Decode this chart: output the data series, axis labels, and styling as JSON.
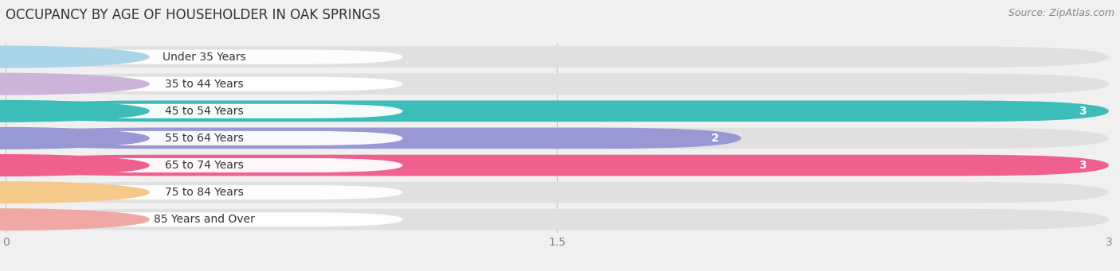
{
  "title": "OCCUPANCY BY AGE OF HOUSEHOLDER IN OAK SPRINGS",
  "source": "Source: ZipAtlas.com",
  "categories": [
    "Under 35 Years",
    "35 to 44 Years",
    "45 to 54 Years",
    "55 to 64 Years",
    "65 to 74 Years",
    "75 to 84 Years",
    "85 Years and Over"
  ],
  "values": [
    0,
    0,
    3,
    2,
    3,
    0,
    0
  ],
  "bar_colors": [
    "#aad4e8",
    "#ccb3d9",
    "#3dbdba",
    "#9898d4",
    "#f0608e",
    "#f5c98a",
    "#f0a8a4"
  ],
  "bg_color": "#f0f0f0",
  "bar_bg_color": "#e0e0e0",
  "xlim": [
    0,
    3
  ],
  "xticks": [
    0,
    1.5,
    3
  ],
  "xtick_labels": [
    "0",
    "1.5",
    "3"
  ],
  "title_fontsize": 12,
  "label_fontsize": 10,
  "value_fontsize": 10
}
